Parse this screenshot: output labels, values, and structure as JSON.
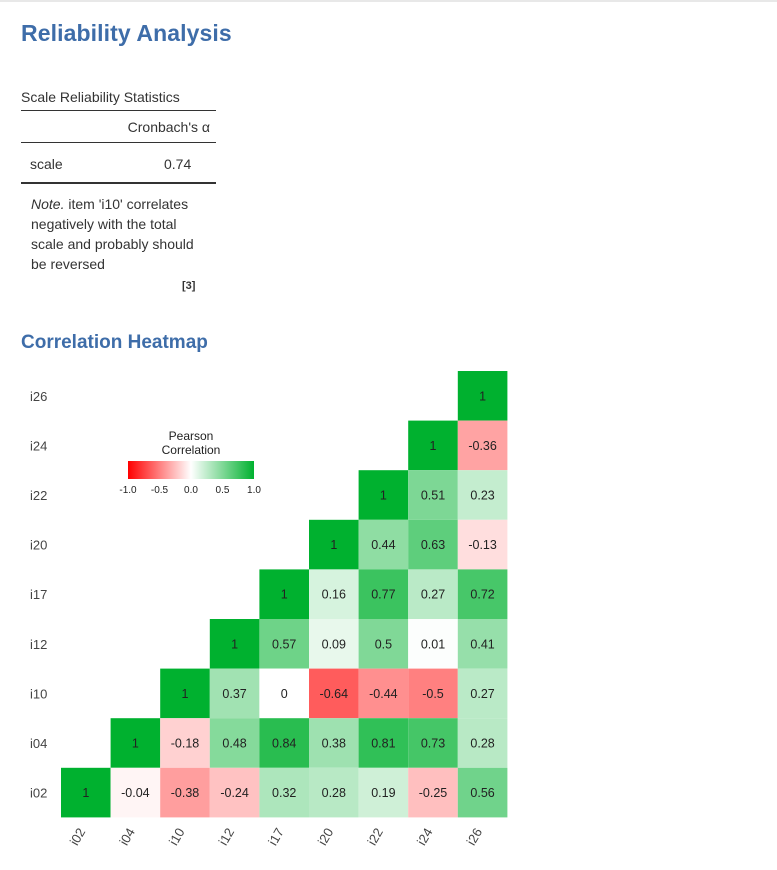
{
  "page": {
    "title": "Reliability Analysis"
  },
  "reliability_table": {
    "title": "Scale Reliability Statistics",
    "column_header": "Cronbach's α",
    "row_label": "scale",
    "row_value": "0.74",
    "note_prefix": "Note.",
    "note_text": "item 'i10' correlates negatively with the total scale and probably should be reversed",
    "reference": "[3]"
  },
  "heatmap_section": {
    "title": "Correlation Heatmap"
  },
  "chart_data": {
    "type": "heatmap",
    "title": "",
    "x_labels": [
      "i02",
      "i04",
      "i10",
      "i12",
      "i17",
      "i20",
      "i22",
      "i24",
      "i26"
    ],
    "y_labels": [
      "i26",
      "i24",
      "i22",
      "i20",
      "i17",
      "i12",
      "i10",
      "i04",
      "i02"
    ],
    "cells": [
      {
        "x": "i26",
        "y": "i26",
        "value": 1,
        "label": "1"
      },
      {
        "x": "i24",
        "y": "i24",
        "value": 1,
        "label": "1"
      },
      {
        "x": "i26",
        "y": "i24",
        "value": -0.36,
        "label": "-0.36"
      },
      {
        "x": "i22",
        "y": "i22",
        "value": 1,
        "label": "1"
      },
      {
        "x": "i24",
        "y": "i22",
        "value": 0.51,
        "label": "0.51"
      },
      {
        "x": "i26",
        "y": "i22",
        "value": 0.23,
        "label": "0.23"
      },
      {
        "x": "i20",
        "y": "i20",
        "value": 1,
        "label": "1"
      },
      {
        "x": "i22",
        "y": "i20",
        "value": 0.44,
        "label": "0.44"
      },
      {
        "x": "i24",
        "y": "i20",
        "value": 0.63,
        "label": "0.63"
      },
      {
        "x": "i26",
        "y": "i20",
        "value": -0.13,
        "label": "-0.13"
      },
      {
        "x": "i17",
        "y": "i17",
        "value": 1,
        "label": "1"
      },
      {
        "x": "i20",
        "y": "i17",
        "value": 0.16,
        "label": "0.16"
      },
      {
        "x": "i22",
        "y": "i17",
        "value": 0.77,
        "label": "0.77"
      },
      {
        "x": "i24",
        "y": "i17",
        "value": 0.27,
        "label": "0.27"
      },
      {
        "x": "i26",
        "y": "i17",
        "value": 0.72,
        "label": "0.72"
      },
      {
        "x": "i12",
        "y": "i12",
        "value": 1,
        "label": "1"
      },
      {
        "x": "i17",
        "y": "i12",
        "value": 0.57,
        "label": "0.57"
      },
      {
        "x": "i20",
        "y": "i12",
        "value": 0.09,
        "label": "0.09"
      },
      {
        "x": "i22",
        "y": "i12",
        "value": 0.5,
        "label": "0.5"
      },
      {
        "x": "i24",
        "y": "i12",
        "value": 0.01,
        "label": "0.01"
      },
      {
        "x": "i26",
        "y": "i12",
        "value": 0.41,
        "label": "0.41"
      },
      {
        "x": "i10",
        "y": "i10",
        "value": 1,
        "label": "1"
      },
      {
        "x": "i12",
        "y": "i10",
        "value": 0.37,
        "label": "0.37"
      },
      {
        "x": "i17",
        "y": "i10",
        "value": 0,
        "label": "0"
      },
      {
        "x": "i20",
        "y": "i10",
        "value": -0.64,
        "label": "-0.64"
      },
      {
        "x": "i22",
        "y": "i10",
        "value": -0.44,
        "label": "-0.44"
      },
      {
        "x": "i24",
        "y": "i10",
        "value": -0.5,
        "label": "-0.5"
      },
      {
        "x": "i26",
        "y": "i10",
        "value": 0.27,
        "label": "0.27"
      },
      {
        "x": "i04",
        "y": "i04",
        "value": 1,
        "label": "1"
      },
      {
        "x": "i10",
        "y": "i04",
        "value": -0.18,
        "label": "-0.18"
      },
      {
        "x": "i12",
        "y": "i04",
        "value": 0.48,
        "label": "0.48"
      },
      {
        "x": "i17",
        "y": "i04",
        "value": 0.84,
        "label": "0.84"
      },
      {
        "x": "i20",
        "y": "i04",
        "value": 0.38,
        "label": "0.38"
      },
      {
        "x": "i22",
        "y": "i04",
        "value": 0.81,
        "label": "0.81"
      },
      {
        "x": "i24",
        "y": "i04",
        "value": 0.73,
        "label": "0.73"
      },
      {
        "x": "i26",
        "y": "i04",
        "value": 0.28,
        "label": "0.28"
      },
      {
        "x": "i02",
        "y": "i02",
        "value": 1,
        "label": "1"
      },
      {
        "x": "i04",
        "y": "i02",
        "value": -0.04,
        "label": "-0.04"
      },
      {
        "x": "i10",
        "y": "i02",
        "value": -0.38,
        "label": "-0.38"
      },
      {
        "x": "i12",
        "y": "i02",
        "value": -0.24,
        "label": "-0.24"
      },
      {
        "x": "i17",
        "y": "i02",
        "value": 0.32,
        "label": "0.32"
      },
      {
        "x": "i20",
        "y": "i02",
        "value": 0.28,
        "label": "0.28"
      },
      {
        "x": "i22",
        "y": "i02",
        "value": 0.19,
        "label": "0.19"
      },
      {
        "x": "i24",
        "y": "i02",
        "value": -0.25,
        "label": "-0.25"
      },
      {
        "x": "i26",
        "y": "i02",
        "value": 0.56,
        "label": "0.56"
      }
    ],
    "legend": {
      "title_lines": [
        "Pearson",
        "Correlation"
      ],
      "ticks": [
        "-1.0",
        "-0.5",
        "0.0",
        "0.5",
        "1.0"
      ],
      "range": [
        -1,
        1
      ],
      "colors": {
        "negative": "#ff0000",
        "zero": "#ffffff",
        "positive": "#00b12f"
      }
    }
  }
}
